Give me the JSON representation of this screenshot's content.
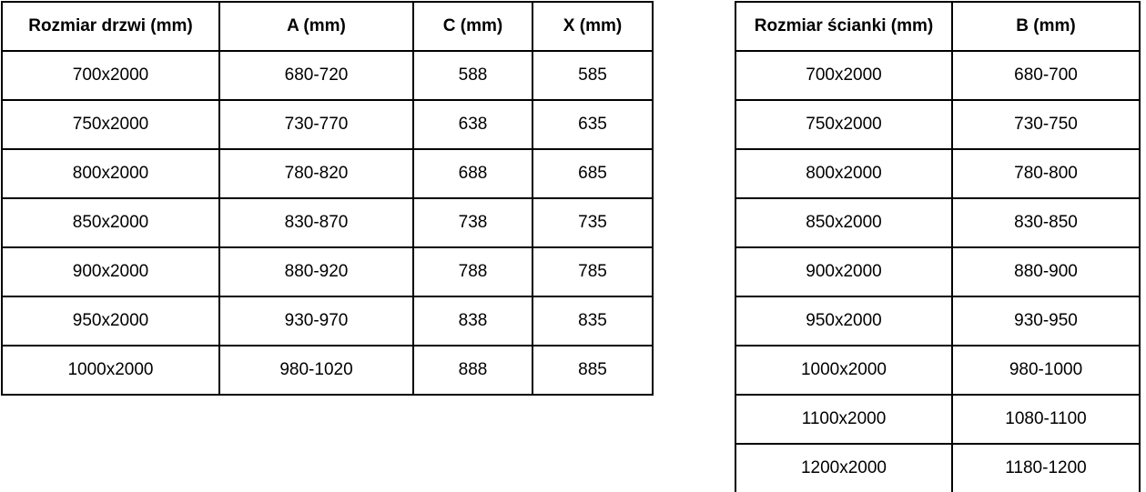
{
  "doors_table": {
    "headers": [
      "Rozmiar drzwi (mm)",
      "A (mm)",
      "C (mm)",
      "X (mm)"
    ],
    "rows": [
      [
        "700x2000",
        "680-720",
        "588",
        "585"
      ],
      [
        "750x2000",
        "730-770",
        "638",
        "635"
      ],
      [
        "800x2000",
        "780-820",
        "688",
        "685"
      ],
      [
        "850x2000",
        "830-870",
        "738",
        "735"
      ],
      [
        "900x2000",
        "880-920",
        "788",
        "785"
      ],
      [
        "950x2000",
        "930-970",
        "838",
        "835"
      ],
      [
        "1000x2000",
        "980-1020",
        "888",
        "885"
      ]
    ]
  },
  "walls_table": {
    "headers": [
      "Rozmiar ścianki (mm)",
      "B (mm)"
    ],
    "rows": [
      [
        "700x2000",
        "680-700"
      ],
      [
        "750x2000",
        "730-750"
      ],
      [
        "800x2000",
        "780-800"
      ],
      [
        "850x2000",
        "830-850"
      ],
      [
        "900x2000",
        "880-900"
      ],
      [
        "950x2000",
        "930-950"
      ],
      [
        "1000x2000",
        "980-1000"
      ],
      [
        "1100x2000",
        "1080-1100"
      ],
      [
        "1200x2000",
        "1180-1200"
      ]
    ]
  },
  "colors": {
    "border": "#000000",
    "text": "#000000",
    "background": "#ffffff"
  }
}
